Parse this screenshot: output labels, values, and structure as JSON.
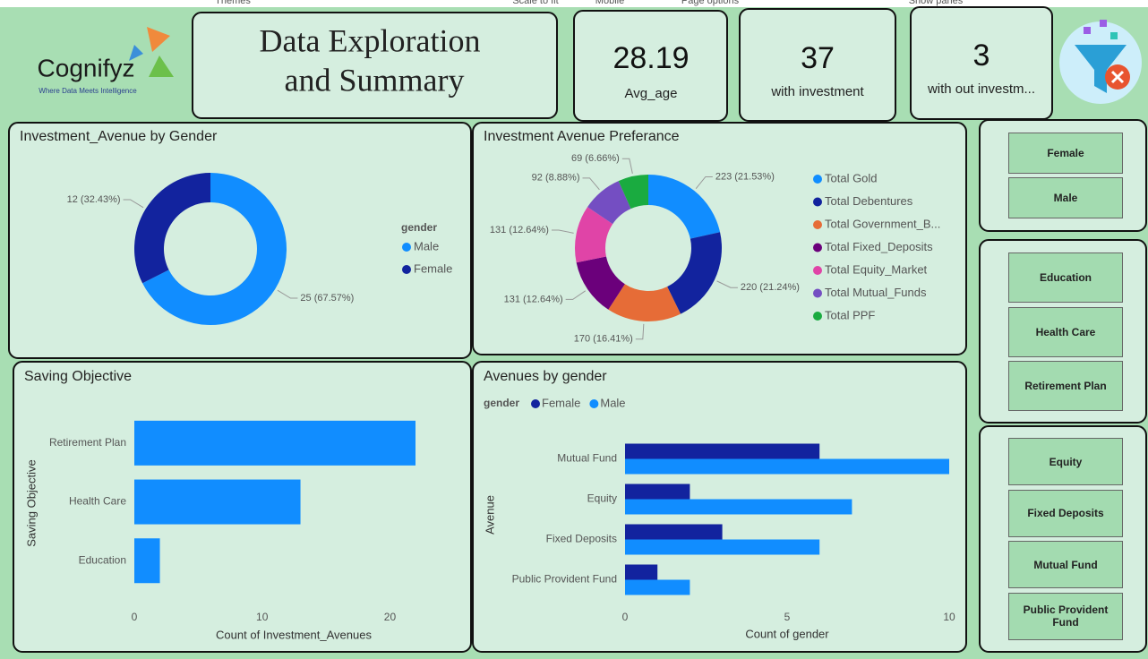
{
  "toolbar": [
    "Themes",
    "Scale to fit",
    "Mobile",
    "Page options",
    "Show panes"
  ],
  "logo": {
    "name": "Cognifyz",
    "tagline": "Where Data Meets Intelligence"
  },
  "header": {
    "title": [
      "Data Exploration",
      "and Summary"
    ]
  },
  "cards": [
    {
      "value": 28.19,
      "label": "Avg_age"
    },
    {
      "value": 37,
      "label": "with investment"
    },
    {
      "value": 3,
      "label": "with out investm..."
    }
  ],
  "slicers": [
    [
      "Female",
      "Male"
    ],
    [
      "Education",
      "Health Care",
      "Retirement Plan"
    ],
    [
      "Equity",
      "Fixed Deposits",
      "Mutual Fund",
      "Public Provident Fund"
    ]
  ],
  "chart_data": [
    {
      "type": "donut",
      "title": "Investment_Avenue by Gender",
      "legend_title": "gender",
      "categories": [
        "Male",
        "Female"
      ],
      "values": [
        25,
        12
      ],
      "value_labels": [
        "25 (67.57%)",
        "12 (32.43%)"
      ],
      "colors": [
        "#118dff",
        "#12239e"
      ],
      "legend": "right"
    },
    {
      "type": "donut",
      "title": "Investment Avenue Preferance",
      "categories": [
        "Total Gold",
        "Total Debentures",
        "Total Government_B...",
        "Total Fixed_Deposits",
        "Total Equity_Market",
        "Total Mutual_Funds",
        "Total  PPF"
      ],
      "values": [
        223,
        220,
        170,
        131,
        131,
        92,
        69
      ],
      "value_labels": [
        "223 (21.53%)",
        "220 (21.24%)",
        "170 (16.41%)",
        "131 (12.64%)",
        "131 (12.64%)",
        "92 (8.88%)",
        "69 (6.66%)"
      ],
      "colors": [
        "#118dff",
        "#12239e",
        "#e66c37",
        "#6b007b",
        "#e044a7",
        "#744ec2",
        "#1aab40"
      ],
      "legend": "right"
    },
    {
      "type": "hbar",
      "title": "Saving Objective",
      "categories": [
        "Retirement Plan",
        "Health Care",
        "Education"
      ],
      "values": [
        22,
        13,
        2
      ],
      "color": "#118dff",
      "xlim": [
        0,
        22
      ],
      "xticks": [
        0,
        10,
        20
      ],
      "xlabel": "Count of Investment_Avenues",
      "ylabel": "Saving Objective"
    },
    {
      "type": "grouped_hbar",
      "title": "Avenues by gender",
      "legend_title": "gender",
      "categories": [
        "Mutual Fund",
        "Equity",
        "Fixed Deposits",
        "Public Provident Fund"
      ],
      "series": [
        {
          "name": "Female",
          "color": "#12239e",
          "values": [
            6,
            2,
            3,
            1
          ]
        },
        {
          "name": "Male",
          "color": "#118dff",
          "values": [
            10,
            7,
            6,
            2
          ]
        }
      ],
      "xlim": [
        0,
        10
      ],
      "xticks": [
        0,
        5,
        10
      ],
      "xlabel": "Count of gender",
      "ylabel": "Avenue",
      "legend": "top-left"
    }
  ]
}
